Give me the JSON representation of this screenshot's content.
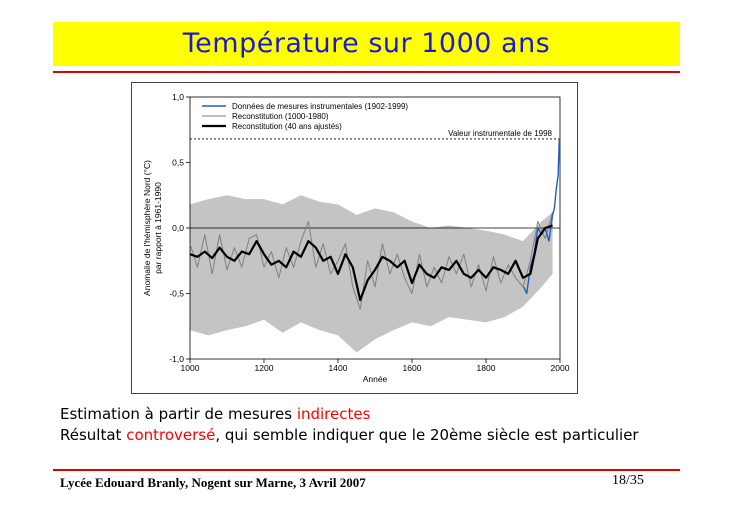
{
  "slide": {
    "title": "Température sur 1000 ans",
    "line1": {
      "prefix": "Estimation à partir de mesures ",
      "highlight": "indirectes"
    },
    "line2": {
      "prefix": "Résultat ",
      "highlight": "controversé",
      "suffix": ", qui semble indiquer que le 20ème siècle est particulier"
    },
    "footer_left": "Lycée Edouard Branly, Nogent sur Marne, 3 Avril 2007",
    "footer_right": "18/35",
    "colors": {
      "title_bg": "#ffff00",
      "title_text": "#1a1ad6",
      "rules": "#e00000",
      "highlight": "#ff0000"
    }
  },
  "chart_data": {
    "type": "line",
    "xlabel": "Année",
    "ylabel_line1": "Anomalie de l'hémisphère Nord  (°C)",
    "ylabel_line2": "par rapport à 1961-1990",
    "xlim": [
      1000,
      2000
    ],
    "ylim": [
      -1.0,
      1.0
    ],
    "x_ticks": [
      "1000",
      "1200",
      "1400",
      "1600",
      "1800",
      "2000"
    ],
    "y_ticks": [
      "1,0",
      "0,5",
      "0,0",
      "-0,5",
      "-1,0"
    ],
    "reference_line": {
      "label": "Valeur instrumentale de 1998",
      "value": 0.68
    },
    "zero_line": 0.0,
    "uncertainty_band": {
      "x": [
        1000,
        1050,
        1100,
        1150,
        1200,
        1250,
        1300,
        1350,
        1400,
        1450,
        1500,
        1550,
        1600,
        1650,
        1700,
        1750,
        1800,
        1850,
        1900,
        1950,
        1980
      ],
      "upper": [
        0.18,
        0.22,
        0.25,
        0.22,
        0.22,
        0.18,
        0.25,
        0.2,
        0.18,
        0.1,
        0.15,
        0.12,
        0.05,
        0.0,
        0.02,
        0.0,
        -0.02,
        -0.05,
        -0.1,
        0.05,
        0.12
      ],
      "lower": [
        -0.78,
        -0.82,
        -0.78,
        -0.75,
        -0.7,
        -0.8,
        -0.72,
        -0.78,
        -0.82,
        -0.95,
        -0.85,
        -0.78,
        -0.72,
        -0.75,
        -0.68,
        -0.7,
        -0.72,
        -0.68,
        -0.6,
        -0.45,
        -0.35
      ]
    },
    "series": [
      {
        "name": "Reconstitution (40 ans ajustés)",
        "color": "#000000",
        "x": [
          1000,
          1020,
          1040,
          1060,
          1080,
          1100,
          1120,
          1140,
          1160,
          1180,
          1200,
          1220,
          1240,
          1260,
          1280,
          1300,
          1320,
          1340,
          1360,
          1380,
          1400,
          1420,
          1440,
          1460,
          1480,
          1500,
          1520,
          1540,
          1560,
          1580,
          1600,
          1620,
          1640,
          1660,
          1680,
          1700,
          1720,
          1740,
          1760,
          1780,
          1800,
          1820,
          1840,
          1860,
          1880,
          1900,
          1920,
          1940,
          1960,
          1980
        ],
        "y": [
          -0.2,
          -0.22,
          -0.18,
          -0.23,
          -0.15,
          -0.22,
          -0.25,
          -0.18,
          -0.2,
          -0.1,
          -0.2,
          -0.28,
          -0.25,
          -0.3,
          -0.18,
          -0.22,
          -0.1,
          -0.15,
          -0.25,
          -0.22,
          -0.35,
          -0.2,
          -0.3,
          -0.55,
          -0.4,
          -0.32,
          -0.22,
          -0.25,
          -0.3,
          -0.25,
          -0.42,
          -0.28,
          -0.35,
          -0.38,
          -0.3,
          -0.32,
          -0.25,
          -0.35,
          -0.38,
          -0.32,
          -0.38,
          -0.3,
          -0.32,
          -0.35,
          -0.25,
          -0.38,
          -0.35,
          -0.08,
          0.0,
          0.02
        ]
      },
      {
        "name": "Reconstitution (1000-1980)",
        "color": "#808080",
        "x": [
          1000,
          1020,
          1040,
          1060,
          1080,
          1100,
          1120,
          1140,
          1160,
          1180,
          1200,
          1220,
          1240,
          1260,
          1280,
          1300,
          1320,
          1340,
          1360,
          1380,
          1400,
          1420,
          1440,
          1460,
          1480,
          1500,
          1520,
          1540,
          1560,
          1580,
          1600,
          1620,
          1640,
          1660,
          1680,
          1700,
          1720,
          1740,
          1760,
          1780,
          1800,
          1820,
          1840,
          1860,
          1880,
          1900,
          1920,
          1940,
          1960,
          1980
        ],
        "y": [
          -0.12,
          -0.3,
          -0.05,
          -0.35,
          -0.05,
          -0.32,
          -0.15,
          -0.3,
          -0.08,
          -0.05,
          -0.3,
          -0.18,
          -0.38,
          -0.15,
          -0.3,
          -0.1,
          0.05,
          -0.3,
          -0.12,
          -0.35,
          -0.25,
          -0.12,
          -0.45,
          -0.62,
          -0.25,
          -0.45,
          -0.12,
          -0.35,
          -0.2,
          -0.38,
          -0.5,
          -0.2,
          -0.45,
          -0.3,
          -0.42,
          -0.22,
          -0.35,
          -0.2,
          -0.45,
          -0.28,
          -0.48,
          -0.22,
          -0.42,
          -0.28,
          -0.38,
          -0.45,
          -0.25,
          0.05,
          -0.08,
          0.12
        ]
      },
      {
        "name": "Données de mesures instrumentales (1902-1999)",
        "color": "#1f5fbf",
        "x": [
          1902,
          1910,
          1920,
          1930,
          1940,
          1950,
          1960,
          1970,
          1980,
          1985,
          1990,
          1995,
          1998,
          1999
        ],
        "y": [
          -0.45,
          -0.5,
          -0.3,
          -0.2,
          0.0,
          -0.05,
          0.0,
          -0.1,
          0.1,
          0.15,
          0.3,
          0.4,
          0.68,
          0.55
        ]
      }
    ]
  }
}
